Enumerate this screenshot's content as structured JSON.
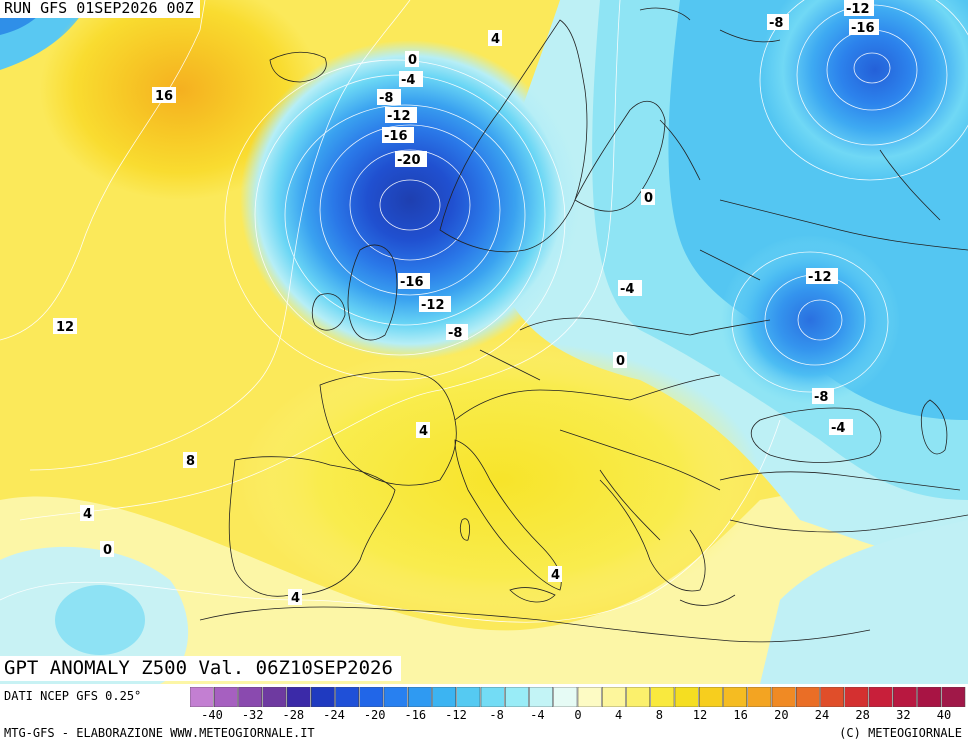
{
  "header": {
    "run": "RUN GFS 01SEP2026 00Z"
  },
  "title": "GPT ANOMALY Z500 Val. 06Z10SEP2026",
  "source": "DATI NCEP GFS 0.25°",
  "footer": {
    "left": "MTG-GFS - ELABORAZIONE WWW.METEOGIORNALE.IT",
    "right": "(C) METEOGIORNALE"
  },
  "legend": {
    "ticks": [
      "-40",
      "-32",
      "-28",
      "-24",
      "-20",
      "-16",
      "-12",
      "-8",
      "-4",
      "0",
      "4",
      "8",
      "12",
      "16",
      "20",
      "24",
      "28",
      "32",
      "40"
    ],
    "colors": [
      "#c37fd2",
      "#a660c0",
      "#8a4aaf",
      "#6e3aa0",
      "#3b2aa8",
      "#1f3ac0",
      "#1f50d8",
      "#2166e8",
      "#2880f0",
      "#2f9af2",
      "#3cb4f2",
      "#55caf2",
      "#73dcf5",
      "#99ecf7",
      "#c3f4f6",
      "#e6fbf5",
      "#fdfbc4",
      "#fdf69c",
      "#fbf06c",
      "#f9e93e",
      "#f5de21",
      "#f7ce1e",
      "#f5bc22",
      "#f3a422",
      "#f08a24",
      "#ea6e26",
      "#e04e2a",
      "#d43030",
      "#c81f3a",
      "#b81840",
      "#a81444",
      "#a01848"
    ]
  },
  "colors": {
    "land_line": "#222222",
    "contour": "#ffffff"
  },
  "contour_labels": [
    "-12",
    "-16",
    "-8",
    "0",
    "-4",
    "-8",
    "-12",
    "-16",
    "-20",
    "-16",
    "-12",
    "-8",
    "0",
    "-4",
    "-12",
    "-8",
    "-4",
    "16",
    "12",
    "8",
    "4",
    "0",
    "4",
    "4",
    "4",
    "0",
    "4"
  ]
}
